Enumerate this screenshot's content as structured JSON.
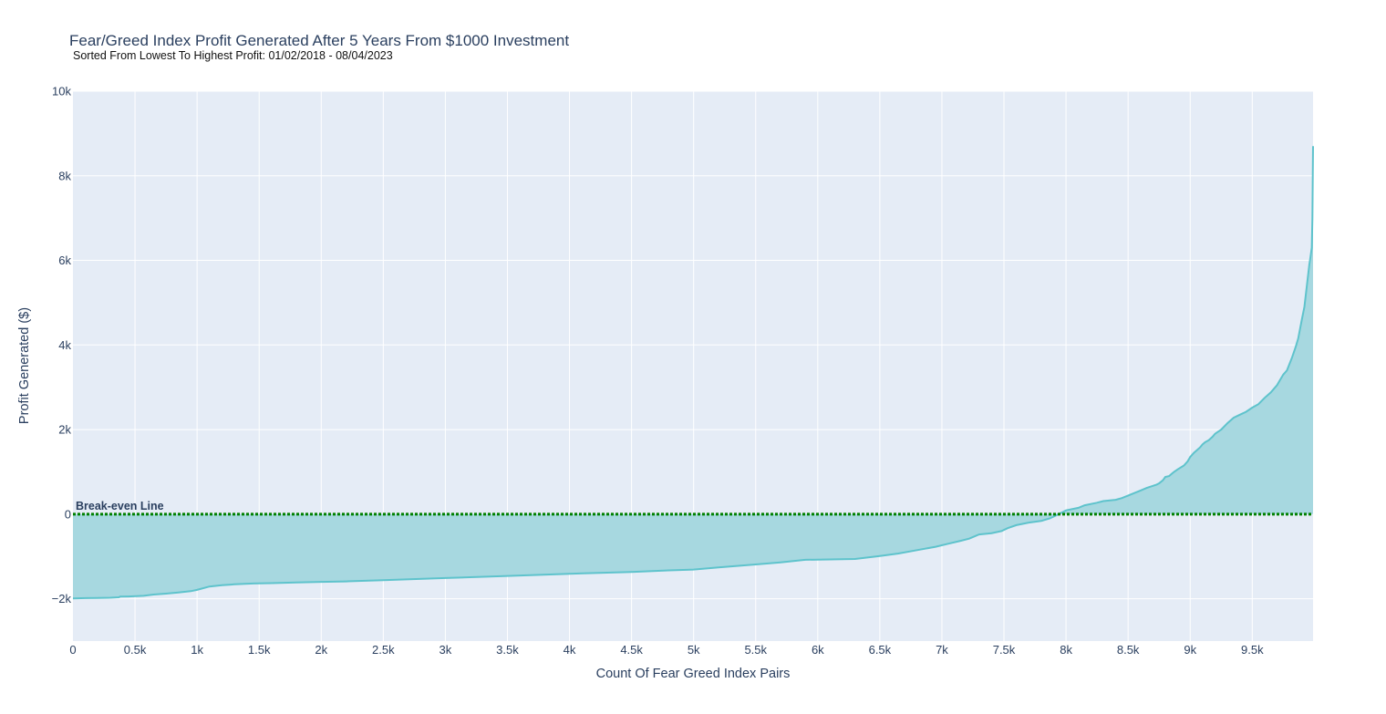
{
  "chart_data": {
    "type": "area",
    "title": "Fear/Greed Index Profit Generated After 5 Years From $1000 Investment",
    "subtitle": "Sorted From Lowest To Highest Profit: 01/02/2018 - 08/04/2023",
    "xlabel": "Count Of Fear Greed Index Pairs",
    "ylabel": "Profit Generated ($)",
    "xlim": [
      0,
      9990
    ],
    "ylim": [
      -3000,
      10000
    ],
    "x_ticks": [
      {
        "value": 0,
        "label": "0"
      },
      {
        "value": 500,
        "label": "0.5k"
      },
      {
        "value": 1000,
        "label": "1k"
      },
      {
        "value": 1500,
        "label": "1.5k"
      },
      {
        "value": 2000,
        "label": "2k"
      },
      {
        "value": 2500,
        "label": "2.5k"
      },
      {
        "value": 3000,
        "label": "3k"
      },
      {
        "value": 3500,
        "label": "3.5k"
      },
      {
        "value": 4000,
        "label": "4k"
      },
      {
        "value": 4500,
        "label": "4.5k"
      },
      {
        "value": 5000,
        "label": "5k"
      },
      {
        "value": 5500,
        "label": "5.5k"
      },
      {
        "value": 6000,
        "label": "6k"
      },
      {
        "value": 6500,
        "label": "6.5k"
      },
      {
        "value": 7000,
        "label": "7k"
      },
      {
        "value": 7500,
        "label": "7.5k"
      },
      {
        "value": 8000,
        "label": "8k"
      },
      {
        "value": 8500,
        "label": "8.5k"
      },
      {
        "value": 9000,
        "label": "9k"
      },
      {
        "value": 9500,
        "label": "9.5k"
      }
    ],
    "y_ticks": [
      {
        "value": -2000,
        "label": "−2k"
      },
      {
        "value": 0,
        "label": "0"
      },
      {
        "value": 2000,
        "label": "2k"
      },
      {
        "value": 4000,
        "label": "4k"
      },
      {
        "value": 6000,
        "label": "6k"
      },
      {
        "value": 8000,
        "label": "8k"
      },
      {
        "value": 10000,
        "label": "10k"
      }
    ],
    "grid": true,
    "series": [
      {
        "x": [
          0,
          100,
          200,
          300,
          370,
          380,
          450,
          570,
          650,
          750,
          850,
          950,
          1000,
          1100,
          1200,
          1300,
          1450,
          1600,
          1800,
          2000,
          2200,
          2500,
          3000,
          3500,
          4000,
          4500,
          4800,
          5000,
          5200,
          5500,
          5700,
          5900,
          6100,
          6300,
          6500,
          6650,
          6800,
          6950,
          7050,
          7150,
          7220,
          7250,
          7300,
          7400,
          7480,
          7530,
          7600,
          7700,
          7800,
          7870,
          7920,
          8000,
          8100,
          8150,
          8250,
          8300,
          8400,
          8450,
          8500,
          8550,
          8600,
          8650,
          8700,
          8730,
          8750,
          8780,
          8800,
          8830,
          8850,
          8870,
          8900,
          8950,
          8980,
          9000,
          9030,
          9050,
          9080,
          9100,
          9120,
          9150,
          9180,
          9200,
          9250,
          9300,
          9350,
          9400,
          9450,
          9500,
          9550,
          9600,
          9650,
          9700,
          9720,
          9750,
          9780,
          9800,
          9820,
          9850,
          9870,
          9880,
          9900,
          9920,
          9940,
          9960,
          9970,
          9980,
          9985,
          9988,
          9990
        ],
        "y": [
          -1990,
          -1985,
          -1980,
          -1975,
          -1965,
          -1950,
          -1945,
          -1930,
          -1900,
          -1880,
          -1850,
          -1820,
          -1790,
          -1710,
          -1680,
          -1660,
          -1640,
          -1630,
          -1615,
          -1600,
          -1590,
          -1560,
          -1510,
          -1460,
          -1410,
          -1365,
          -1330,
          -1310,
          -1260,
          -1190,
          -1140,
          -1080,
          -1070,
          -1060,
          -990,
          -930,
          -850,
          -770,
          -700,
          -630,
          -580,
          -540,
          -480,
          -450,
          -400,
          -330,
          -260,
          -200,
          -160,
          -100,
          -30,
          90,
          150,
          210,
          270,
          310,
          340,
          380,
          440,
          500,
          560,
          620,
          670,
          700,
          730,
          800,
          880,
          900,
          950,
          1000,
          1060,
          1150,
          1250,
          1350,
          1450,
          1500,
          1580,
          1650,
          1700,
          1750,
          1830,
          1900,
          2000,
          2150,
          2280,
          2350,
          2420,
          2520,
          2600,
          2750,
          2880,
          3050,
          3150,
          3300,
          3400,
          3550,
          3700,
          3950,
          4150,
          4300,
          4600,
          4900,
          5400,
          5900,
          6100,
          6300,
          7000,
          8000,
          8700
        ]
      }
    ],
    "annotations": [
      {
        "text": "Break-even Line",
        "y": 0
      }
    ],
    "colors": {
      "plot_bg": "#e5ecf6",
      "grid": "#ffffff",
      "line": "#5ec3cc",
      "fill": "#a7d8e0",
      "breakeven": "#008000",
      "text": "#2a3f5f"
    }
  }
}
